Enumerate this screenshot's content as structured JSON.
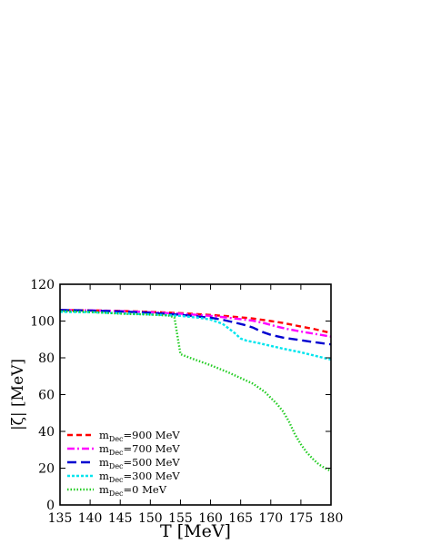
{
  "chart_data": {
    "type": "line",
    "title": "",
    "xlabel": "T [MeV]",
    "ylabel": "|ζ|  [MeV]",
    "xlim": [
      135,
      180
    ],
    "ylim": [
      0,
      120
    ],
    "xticks": [
      135,
      140,
      145,
      150,
      155,
      160,
      165,
      170,
      175,
      180
    ],
    "yticks": [
      0,
      20,
      40,
      60,
      80,
      100,
      120
    ],
    "grid": false,
    "legend_position": "bottom-left",
    "series": [
      {
        "name": "m_Dec=900 MeV",
        "label_main": "m",
        "label_sub": "Dec",
        "label_rest": "=900 MeV",
        "color": "#ff0000",
        "dash": "6,4",
        "x": [
          135,
          140,
          145,
          150,
          155,
          160,
          163,
          165,
          167,
          170,
          172,
          175,
          177,
          180
        ],
        "y": [
          106,
          105.8,
          105.5,
          105,
          104.3,
          103.3,
          102.6,
          102,
          101.4,
          100,
          99,
          97,
          95.8,
          93.5
        ]
      },
      {
        "name": "m_Dec=700 MeV",
        "label_main": "m",
        "label_sub": "Dec",
        "label_rest": "=700 MeV",
        "color": "#ff00ff",
        "dash": "8,3,2,3",
        "x": [
          135,
          140,
          145,
          150,
          155,
          160,
          163,
          165,
          167,
          169,
          171,
          173,
          175,
          177,
          180
        ],
        "y": [
          106,
          105.8,
          105.4,
          104.8,
          104,
          102.8,
          101.8,
          101,
          100.2,
          98.8,
          97,
          95.5,
          94.3,
          93.2,
          91.5
        ]
      },
      {
        "name": "m_Dec=500 MeV",
        "label_main": "m",
        "label_sub": "Dec",
        "label_rest": "=500 MeV",
        "color": "#0000d0",
        "dash": "10,5",
        "x": [
          135,
          140,
          145,
          150,
          155,
          160,
          162,
          164,
          165.5,
          167,
          168.5,
          170,
          172,
          175,
          177,
          180
        ],
        "y": [
          106,
          105.7,
          105.2,
          104.5,
          103.4,
          101.8,
          100.7,
          99.2,
          98,
          96.5,
          94.2,
          92.5,
          91,
          89.6,
          88.6,
          87.3
        ]
      },
      {
        "name": "m_Dec=300 MeV",
        "label_main": "m",
        "label_sub": "Dec",
        "label_rest": "=300 MeV",
        "color": "#00e5ee",
        "dash": "3,2",
        "x": [
          135,
          140,
          145,
          150,
          155,
          158,
          160,
          162,
          163,
          164,
          165,
          166,
          168,
          170,
          172,
          175,
          178,
          180
        ],
        "y": [
          105,
          104.8,
          104.2,
          103.6,
          102.8,
          101.8,
          100.8,
          98.5,
          96,
          93.5,
          90.5,
          89.3,
          88,
          86.5,
          85,
          83,
          80.6,
          79
        ]
      },
      {
        "name": "m_Dec=0 MeV",
        "label_main": "m",
        "label_sub": "Dec",
        "label_rest": "=0 MeV",
        "color": "#22cc22",
        "dash": "1.5,2",
        "x": [
          135,
          140,
          145,
          150,
          153,
          154,
          154.5,
          155,
          157,
          160,
          163,
          165,
          167,
          169,
          171,
          172,
          173,
          174,
          175,
          176,
          177,
          178,
          179,
          180
        ],
        "y": [
          105.5,
          105,
          104,
          103.5,
          103,
          102,
          92,
          82,
          79.5,
          76,
          72,
          69,
          66,
          61.5,
          55,
          51,
          45.5,
          38.5,
          33,
          28.5,
          25,
          22,
          20,
          18.5
        ]
      }
    ]
  }
}
